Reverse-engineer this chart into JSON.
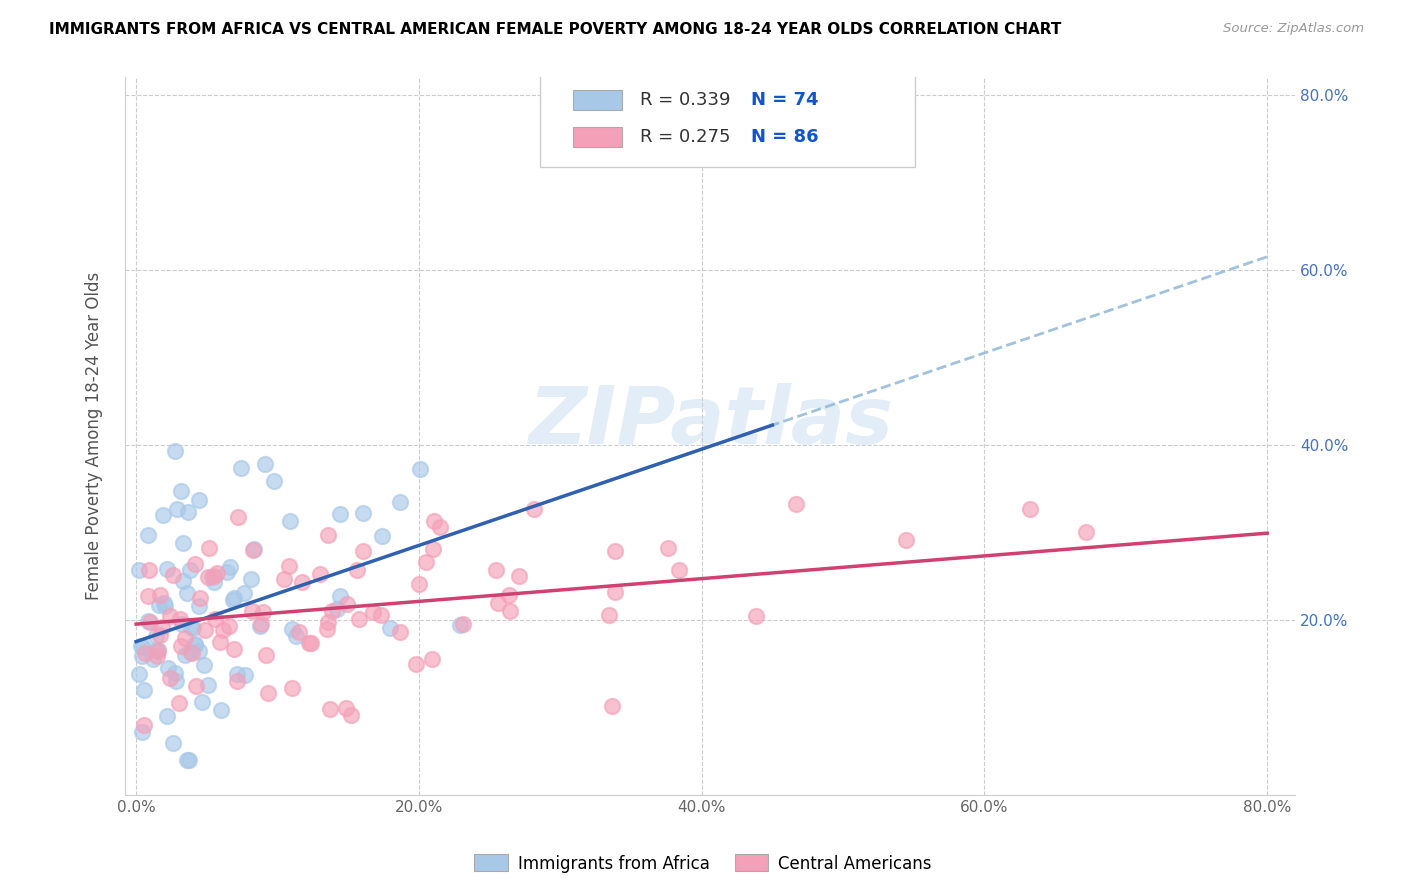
{
  "title": "IMMIGRANTS FROM AFRICA VS CENTRAL AMERICAN FEMALE POVERTY AMONG 18-24 YEAR OLDS CORRELATION CHART",
  "source": "Source: ZipAtlas.com",
  "ylabel": "Female Poverty Among 18-24 Year Olds",
  "watermark": "ZIPatlas",
  "legend_r1": "R = 0.339",
  "legend_n1": "N = 74",
  "legend_r2": "R = 0.275",
  "legend_n2": "N = 86",
  "color_africa": "#a8c8e8",
  "color_central": "#f4a0b8",
  "color_africa_line": "#3060b0",
  "color_central_line": "#d04070",
  "color_dashed_line": "#90b8d8",
  "africa_slope": 0.55,
  "africa_intercept": 0.175,
  "central_slope": 0.13,
  "central_intercept": 0.195,
  "xlim": [
    -0.008,
    0.82
  ],
  "ylim": [
    0.0,
    0.82
  ],
  "xtick_vals": [
    0.0,
    0.2,
    0.4,
    0.6,
    0.8
  ],
  "ytick_vals": [
    0.2,
    0.4,
    0.6,
    0.8
  ],
  "xticklabels": [
    "0.0%",
    "20.0%",
    "40.0%",
    "60.0%",
    "80.0%"
  ],
  "yticklabels_right": [
    "20.0%",
    "40.0%",
    "60.0%",
    "80.0%"
  ]
}
